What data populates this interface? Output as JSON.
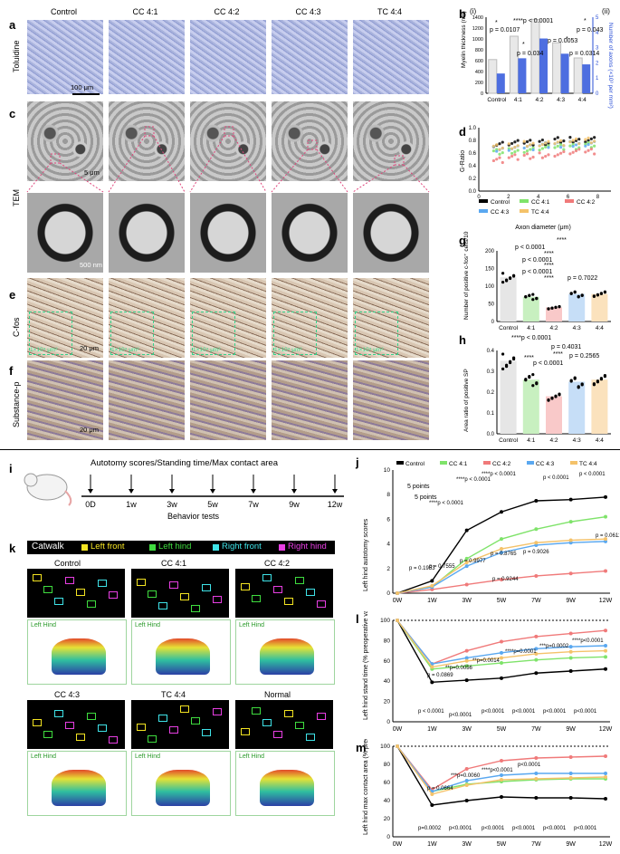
{
  "panels": {
    "a": "a",
    "b": "b",
    "c": "c",
    "d": "d",
    "e": "e",
    "f": "f",
    "g": "g",
    "h": "h",
    "i": "i",
    "j": "j",
    "k": "k",
    "l": "l",
    "m": "m"
  },
  "groups": [
    "Control",
    "CC 4:1",
    "CC 4:2",
    "CC 4:3",
    "TC 4:4"
  ],
  "group_short": [
    "Control",
    "4:1",
    "4:2",
    "4:3",
    "4:4"
  ],
  "rows": {
    "a": "Toluidine",
    "c": "TEM",
    "e": "C-fos",
    "f": "Substance-p"
  },
  "scales": {
    "a": "100 μm",
    "c1": "5 μm",
    "c2": "500 nm",
    "e": "20 μm",
    "f": "20 μm"
  },
  "cfos_area": "1×10⁴ μm²",
  "b": {
    "roman_left": "(i)",
    "roman_right": "(ii)",
    "ylabel_left": "Myelin thickness (nm)",
    "ylabel_right": "Number of axons (×10³ per mm²)",
    "yticks_left": [
      "0",
      "200",
      "400",
      "600",
      "800",
      "1000",
      "1200",
      "1400"
    ],
    "yticks_right": [
      "0",
      "1",
      "2",
      "3",
      "4",
      "5"
    ],
    "stats": [
      "p = 0.0107",
      "****p < 0.0001",
      "p = 0.034",
      "p = 0.0053",
      "p = 0.043",
      "p = 0.0314",
      "*",
      "*",
      "*",
      "*"
    ]
  },
  "d": {
    "ylabel": "G-Ratio",
    "xlabel": "Axon diameter (μm)",
    "yticks": [
      "0.0",
      "0.2",
      "0.4",
      "0.6",
      "0.8",
      "1.0"
    ],
    "xticks": [
      "0",
      "2",
      "4",
      "6",
      "8"
    ],
    "legend": [
      "Control",
      "CC 4:1",
      "CC 4:2",
      "CC 4:3",
      "TC 4:4"
    ]
  },
  "g": {
    "ylabel": "Number of positive c-fos⁺ cells/10⁴ μm²",
    "yticks": [
      "0",
      "50",
      "100",
      "150",
      "200"
    ],
    "stats": [
      "****",
      "p < 0.0001",
      "****",
      "p < 0.0001",
      "****",
      "p < 0.0001",
      "****",
      "p = 0.7022"
    ]
  },
  "h": {
    "ylabel": "Area ratio of positive SP",
    "yticks": [
      "0.0",
      "0.1",
      "0.2",
      "0.3",
      "0.4"
    ],
    "stats": [
      "****p < 0.0001",
      "p = 0.4031",
      "****",
      "p < 0.0001",
      "p = 0.2565",
      "****"
    ]
  },
  "i": {
    "title": "Autotomy scores/Standing time/Max contact area",
    "times": [
      "0D",
      "1w",
      "3w",
      "5w",
      "7w",
      "9w",
      "12w"
    ],
    "footer": "Behavior tests"
  },
  "k": {
    "legend_title": "Catwalk",
    "legend": [
      "Left front",
      "Left hind",
      "Right front",
      "Right hind"
    ],
    "groups": [
      "Control",
      "CC 4:1",
      "CC 4:2",
      "CC 4:3",
      "TC 4:4",
      "Normal"
    ],
    "heat_label": "Left Hind"
  },
  "times": [
    "0W",
    "1W",
    "3W",
    "5W",
    "7W",
    "9W",
    "12W"
  ],
  "j": {
    "ylabel": "Left hind autotomy scores",
    "yticks": [
      "0",
      "2",
      "4",
      "6",
      "8",
      "10"
    ],
    "legend": [
      "Control",
      "CC 4:1",
      "CC 4:2",
      "CC 4:3",
      "TC 4:4"
    ],
    "annot": [
      "5 points",
      "5 points"
    ],
    "stats": [
      "****p < 0.0001",
      "****p < 0.0001",
      "****p < 0.0001",
      "p < 0.0001",
      "p < 0.0001",
      "p = 0.1953",
      "p = 0.7555",
      "p = 0.9977",
      "p = 0.8765",
      "p = 0.9026",
      "p = 0.9244",
      "p = 0.0611"
    ]
  },
  "l": {
    "ylabel": "Left hind stand time (% preoperative value)",
    "yticks": [
      "0",
      "20",
      "40",
      "60",
      "80",
      "100"
    ],
    "stats": [
      "p = 0.0869",
      "**p=0.0056",
      "**p=0.0014",
      "****p=0.0001",
      "***p=0.0002",
      "****p<0.0001",
      "p < 0.0001",
      "p<0.0001",
      "p<0.0001",
      "p<0.0001",
      "p<0.0001",
      "p<0.0001"
    ]
  },
  "m": {
    "ylabel": "Left hind max contact area (% preoperative value)",
    "yticks": [
      "0",
      "20",
      "40",
      "60",
      "80",
      "100"
    ],
    "stats": [
      "p = 0.0664",
      "***p=0.0060",
      "****p<0.0001",
      "p=0.0002",
      "p<0.0001",
      "p<0.0001",
      "p<0.0001",
      "p<0.0001",
      "p<0.0001",
      "p<0.0001"
    ]
  },
  "colors": {
    "control": "#000000",
    "cc41": "#7fe36a",
    "cc42": "#f07a7a",
    "cc43": "#5aa8f0",
    "tc44": "#f4c26a",
    "bar": "#4d6ee0",
    "legend_bg": "#000000"
  },
  "chart_data": [
    {
      "type": "bar",
      "panel": "b",
      "categories": [
        "Control",
        "4:1",
        "4:2",
        "4:3",
        "4:4"
      ],
      "series": [
        {
          "name": "",
          "values": [
            620,
            1050,
            1360,
            930,
            650
          ]
        },
        {
          "name": "",
          "values": [
            1.3,
            2.3,
            3.6,
            2.6,
            1.9
          ]
        }
      ],
      "ylim": [
        0,
        1400
      ]
    },
    {
      "type": "scatter",
      "panel": "d",
      "xlabel": "Axon diameter (μm)",
      "ylabel": "G-Ratio",
      "xlim": [
        0,
        8
      ],
      "ylim": [
        0,
        1
      ],
      "series": [
        {
          "name": "Control",
          "x": [
            1,
            2,
            3,
            4,
            5,
            6,
            7
          ],
          "y": [
            0.75,
            0.76,
            0.77,
            0.78,
            0.8,
            0.81,
            0.82
          ]
        },
        {
          "name": "CC 4:1",
          "x": [
            1,
            2,
            3,
            4,
            5,
            6,
            7
          ],
          "y": [
            0.62,
            0.64,
            0.66,
            0.68,
            0.7,
            0.71,
            0.72
          ]
        },
        {
          "name": "CC 4:2",
          "x": [
            1,
            2,
            3,
            4,
            5,
            6,
            7
          ],
          "y": [
            0.5,
            0.53,
            0.55,
            0.57,
            0.6,
            0.62,
            0.63
          ]
        },
        {
          "name": "CC 4:3",
          "x": [
            1,
            2,
            3,
            4,
            5,
            6,
            7
          ],
          "y": [
            0.66,
            0.68,
            0.7,
            0.72,
            0.73,
            0.75,
            0.76
          ]
        },
        {
          "name": "TC 4:4",
          "x": [
            1,
            2,
            3,
            4,
            5,
            6,
            7
          ],
          "y": [
            0.7,
            0.72,
            0.74,
            0.75,
            0.77,
            0.78,
            0.8
          ]
        }
      ]
    },
    {
      "type": "bar",
      "panel": "g",
      "categories": [
        "Control",
        "4:1",
        "4:2",
        "4:3",
        "4:4"
      ],
      "values": [
        125,
        70,
        40,
        78,
        78
      ],
      "ylim": [
        0,
        200
      ]
    },
    {
      "type": "bar",
      "panel": "h",
      "categories": [
        "Control",
        "4:1",
        "4:2",
        "4:3",
        "4:4"
      ],
      "values": [
        0.35,
        0.26,
        0.18,
        0.25,
        0.26
      ],
      "ylim": [
        0,
        0.4
      ]
    },
    {
      "type": "line",
      "panel": "j",
      "x": [
        "0W",
        "1W",
        "3W",
        "5W",
        "7W",
        "9W",
        "12W"
      ],
      "ylim": [
        0,
        10
      ],
      "series": [
        {
          "name": "Control",
          "values": [
            0,
            1,
            5.1,
            6.6,
            7.5,
            7.6,
            7.8
          ]
        },
        {
          "name": "CC 4:1",
          "values": [
            0,
            0.5,
            2.8,
            4.4,
            5.2,
            5.8,
            6.2
          ]
        },
        {
          "name": "CC 4:2",
          "values": [
            0,
            0.3,
            0.7,
            1.1,
            1.4,
            1.6,
            1.8
          ]
        },
        {
          "name": "CC 4:3",
          "values": [
            0,
            0.5,
            2.2,
            3.3,
            3.9,
            4.1,
            4.2
          ]
        },
        {
          "name": "TC 4:4",
          "values": [
            0,
            0.6,
            2.5,
            3.6,
            4.1,
            4.3,
            4.4
          ]
        }
      ]
    },
    {
      "type": "line",
      "panel": "l",
      "x": [
        "0W",
        "1W",
        "3W",
        "5W",
        "7W",
        "9W",
        "12W"
      ],
      "ylim": [
        0,
        100
      ],
      "series": [
        {
          "name": "Control",
          "values": [
            100,
            39,
            41,
            43,
            48,
            50,
            52
          ]
        },
        {
          "name": "CC 4:1",
          "values": [
            100,
            52,
            55,
            58,
            61,
            63,
            64
          ]
        },
        {
          "name": "CC 4:2",
          "values": [
            100,
            57,
            70,
            79,
            84,
            87,
            90
          ]
        },
        {
          "name": "CC 4:3",
          "values": [
            100,
            57,
            63,
            68,
            72,
            74,
            75
          ]
        },
        {
          "name": "TC 4:4",
          "values": [
            100,
            54,
            60,
            63,
            67,
            69,
            70
          ]
        }
      ]
    },
    {
      "type": "line",
      "panel": "m",
      "x": [
        "0W",
        "1W",
        "3W",
        "5W",
        "7W",
        "9W",
        "12W"
      ],
      "ylim": [
        0,
        100
      ],
      "series": [
        {
          "name": "Control",
          "values": [
            100,
            35,
            40,
            44,
            43,
            43,
            42
          ]
        },
        {
          "name": "CC 4:1",
          "values": [
            100,
            50,
            58,
            61,
            63,
            64,
            64
          ]
        },
        {
          "name": "CC 4:2",
          "values": [
            100,
            52,
            75,
            84,
            87,
            88,
            89
          ]
        },
        {
          "name": "CC 4:3",
          "values": [
            100,
            50,
            62,
            68,
            70,
            70,
            70
          ]
        },
        {
          "name": "TC 4:4",
          "values": [
            100,
            47,
            57,
            63,
            64,
            65,
            66
          ]
        }
      ]
    }
  ]
}
